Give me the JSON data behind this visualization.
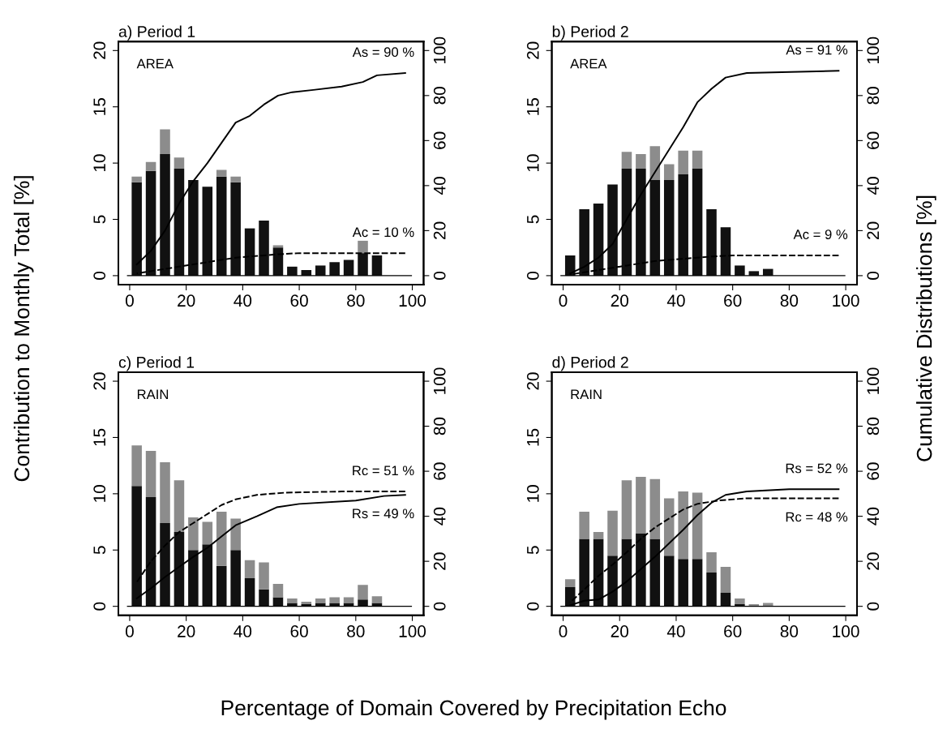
{
  "chart_data": [
    {
      "type": "bar",
      "stacked": true,
      "title": "a) Period 1",
      "ref_lines": [
        {
          "axis": "y",
          "value": 0
        }
      ],
      "ylabel": "Contribution to Monthly Total [%]",
      "annotations": [
        "AREA",
        "As = 90 %",
        "Ac = 10 %"
      ],
      "x": [
        2.5,
        7.5,
        12.5,
        17.5,
        22.5,
        27.5,
        32.5,
        37.5,
        42.5,
        47.5,
        52.5,
        57.5,
        62.5,
        67.5,
        72.5,
        77.5,
        82.5,
        87.5
      ],
      "series": [
        {
          "color": "#111111",
          "values": [
            8.3,
            9.3,
            10.8,
            9.5,
            8.5,
            7.9,
            8.8,
            8.3,
            4.2,
            4.9,
            2.5,
            0.8,
            0.5,
            0.9,
            1.2,
            1.4,
            2.0,
            1.8
          ]
        },
        {
          "color": "#8c8c8c",
          "values": [
            0.5,
            0.8,
            2.2,
            1.0,
            0,
            0,
            0.6,
            0.5,
            0,
            0,
            0.2,
            0,
            0,
            0,
            0,
            0,
            1.1,
            0
          ]
        },
        {
          "type": "line",
          "axis": "y2",
          "line_style": "solid",
          "color": "#000000",
          "x": [
            2.5,
            7.5,
            12.5,
            17.5,
            22.5,
            27.5,
            32.5,
            37.5,
            42.5,
            47.5,
            52.5,
            57.5,
            65,
            75,
            82.5,
            87.5,
            97.5
          ],
          "values": [
            5,
            11,
            20,
            32,
            42,
            50,
            59,
            68,
            71,
            76,
            80,
            81.5,
            82.5,
            84,
            86,
            89,
            90
          ]
        },
        {
          "type": "line",
          "axis": "y2",
          "line_style": "dashed",
          "color": "#000000",
          "x": [
            2.5,
            7.5,
            12.5,
            17.5,
            22.5,
            27.5,
            32.5,
            37.5,
            42.5,
            47.5,
            52.5,
            60,
            97.5
          ],
          "values": [
            1,
            2,
            3,
            4,
            5,
            6,
            7,
            8,
            8.5,
            9,
            9.5,
            10,
            10
          ]
        }
      ],
      "xlim": [
        -4,
        104
      ],
      "xticks": [
        0,
        20,
        40,
        60,
        80,
        100
      ],
      "ylim": [
        -0.8,
        20.8
      ],
      "yticks": [
        0,
        5,
        10,
        15,
        20
      ],
      "y2lim": [
        -4,
        104
      ],
      "y2ticks": [
        0,
        20,
        40,
        60,
        80,
        100
      ],
      "grid": false,
      "legend": false
    },
    {
      "type": "bar",
      "stacked": true,
      "title": "b) Period 2",
      "ref_lines": [
        {
          "axis": "y",
          "value": 0
        }
      ],
      "y2label": "Cumulative Distributions [%]",
      "annotations": [
        "AREA",
        "As = 91 %",
        "Ac = 9 %"
      ],
      "x": [
        2.5,
        7.5,
        12.5,
        17.5,
        22.5,
        27.5,
        32.5,
        37.5,
        42.5,
        47.5,
        52.5,
        57.5,
        62.5,
        67.5,
        72.5
      ],
      "series": [
        {
          "color": "#111111",
          "values": [
            1.8,
            5.9,
            6.4,
            8.1,
            9.5,
            9.5,
            8.5,
            8.5,
            9.0,
            9.5,
            5.9,
            4.3,
            0.9,
            0.4,
            0.6
          ]
        },
        {
          "color": "#8c8c8c",
          "values": [
            0,
            0,
            0,
            0,
            1.5,
            1.3,
            3.0,
            1.4,
            2.1,
            1.6,
            0,
            0,
            0,
            0,
            0
          ]
        },
        {
          "type": "line",
          "axis": "y2",
          "line_style": "solid",
          "color": "#000000",
          "x": [
            2.5,
            7.5,
            12.5,
            17.5,
            22.5,
            27.5,
            32.5,
            37.5,
            42.5,
            47.5,
            52.5,
            57.5,
            65,
            97.5
          ],
          "values": [
            1,
            4,
            8,
            14,
            25,
            36,
            46,
            56,
            66,
            77,
            83,
            88,
            90,
            91
          ]
        },
        {
          "type": "line",
          "axis": "y2",
          "line_style": "dashed",
          "color": "#000000",
          "x": [
            2.5,
            7.5,
            12.5,
            17.5,
            22.5,
            27.5,
            32.5,
            37.5,
            42.5,
            47.5,
            52.5,
            60,
            97.5
          ],
          "values": [
            0.5,
            1.5,
            2.5,
            3.5,
            4.5,
            5.5,
            6.5,
            7,
            7.5,
            8,
            8.5,
            9,
            9
          ]
        }
      ],
      "xlim": [
        -4,
        104
      ],
      "xticks": [
        0,
        20,
        40,
        60,
        80,
        100
      ],
      "ylim": [
        -0.8,
        20.8
      ],
      "yticks": [
        0,
        5,
        10,
        15,
        20
      ],
      "y2lim": [
        -4,
        104
      ],
      "y2ticks": [
        0,
        20,
        40,
        60,
        80,
        100
      ],
      "grid": false,
      "legend": false
    },
    {
      "type": "bar",
      "stacked": true,
      "title": "c) Period 1",
      "ref_lines": [
        {
          "axis": "y",
          "value": 0
        }
      ],
      "xlabel": "Percentage of Domain Covered by Precipitation Echo",
      "annotations": [
        "RAIN",
        "Rc = 51 %",
        "Rs = 49 %"
      ],
      "x": [
        2.5,
        7.5,
        12.5,
        17.5,
        22.5,
        27.5,
        32.5,
        37.5,
        42.5,
        47.5,
        52.5,
        57.5,
        62.5,
        67.5,
        72.5,
        77.5,
        82.5,
        87.5
      ],
      "series": [
        {
          "color": "#111111",
          "values": [
            10.7,
            9.7,
            7.4,
            6.6,
            5.0,
            5.5,
            3.6,
            5.0,
            2.5,
            1.5,
            0.8,
            0.3,
            0.2,
            0.3,
            0.3,
            0.3,
            0.6,
            0.3
          ]
        },
        {
          "color": "#8c8c8c",
          "values": [
            3.6,
            4.1,
            5.4,
            4.6,
            2.9,
            2.0,
            4.8,
            2.8,
            1.6,
            2.4,
            1.2,
            0.4,
            0.2,
            0.4,
            0.5,
            0.5,
            1.3,
            0.6
          ]
        },
        {
          "type": "line",
          "axis": "y2",
          "line_style": "dashed",
          "color": "#000000",
          "x": [
            2.5,
            7.5,
            12.5,
            17.5,
            22.5,
            27.5,
            32.5,
            37.5,
            45,
            55,
            75,
            97.5
          ],
          "values": [
            10.7,
            20,
            27,
            33,
            37,
            41,
            45,
            47.5,
            49.5,
            50.5,
            51,
            51
          ]
        },
        {
          "type": "line",
          "axis": "y2",
          "line_style": "solid",
          "color": "#000000",
          "x": [
            2.5,
            7.5,
            12.5,
            17.5,
            22.5,
            27.5,
            32.5,
            37.5,
            45,
            52,
            60,
            80,
            90,
            97.5
          ],
          "values": [
            3.5,
            8,
            13,
            17.5,
            22,
            26,
            31,
            36,
            40,
            44,
            45.5,
            47,
            49,
            49.5
          ]
        }
      ],
      "xlim": [
        -4,
        104
      ],
      "xticks": [
        0,
        20,
        40,
        60,
        80,
        100
      ],
      "ylim": [
        -0.8,
        20.8
      ],
      "yticks": [
        0,
        5,
        10,
        15,
        20
      ],
      "y2lim": [
        -4,
        104
      ],
      "y2ticks": [
        0,
        20,
        40,
        60,
        80,
        100
      ],
      "grid": false,
      "legend": false
    },
    {
      "type": "bar",
      "stacked": true,
      "title": "d) Period 2",
      "ref_lines": [
        {
          "axis": "y",
          "value": 0
        }
      ],
      "annotations": [
        "RAIN",
        "Rs = 52 %",
        "Rc = 48 %"
      ],
      "x": [
        2.5,
        7.5,
        12.5,
        17.5,
        22.5,
        27.5,
        32.5,
        37.5,
        42.5,
        47.5,
        52.5,
        57.5,
        62.5,
        67.5,
        72.5
      ],
      "series": [
        {
          "color": "#111111",
          "values": [
            1.7,
            6.0,
            6.0,
            4.5,
            6.0,
            6.5,
            6.0,
            4.5,
            4.2,
            4.2,
            3.0,
            1.2,
            0.2,
            0,
            0
          ]
        },
        {
          "color": "#8c8c8c",
          "values": [
            0.7,
            2.4,
            0.6,
            4.0,
            5.2,
            5.0,
            5.3,
            5.1,
            6.0,
            5.9,
            1.8,
            2.3,
            0.5,
            0.2,
            0.3
          ]
        },
        {
          "type": "line",
          "axis": "y2",
          "line_style": "solid",
          "color": "#000000",
          "x": [
            2.5,
            7.5,
            12.5,
            17.5,
            22.5,
            27.5,
            32.5,
            37.5,
            42.5,
            47.5,
            52.5,
            57.5,
            65,
            80,
            97.5
          ],
          "values": [
            0.5,
            2.5,
            3,
            6.5,
            11,
            16.5,
            22,
            28,
            34,
            40.5,
            46,
            49.5,
            51,
            52,
            52
          ]
        },
        {
          "type": "line",
          "axis": "y2",
          "line_style": "dashed",
          "color": "#000000",
          "x": [
            2.5,
            7.5,
            12.5,
            17.5,
            22.5,
            27.5,
            32.5,
            37.5,
            42.5,
            47.5,
            55,
            65,
            97.5
          ],
          "values": [
            1.7,
            7.5,
            13.5,
            18.5,
            24,
            30,
            35,
            39,
            43,
            45.5,
            47,
            48,
            48
          ]
        }
      ],
      "xlim": [
        -4,
        104
      ],
      "xticks": [
        0,
        20,
        40,
        60,
        80,
        100
      ],
      "ylim": [
        -0.8,
        20.8
      ],
      "yticks": [
        0,
        5,
        10,
        15,
        20
      ],
      "y2lim": [
        -4,
        104
      ],
      "y2ticks": [
        0,
        20,
        40,
        60,
        80,
        100
      ],
      "grid": false,
      "legend": false
    }
  ]
}
